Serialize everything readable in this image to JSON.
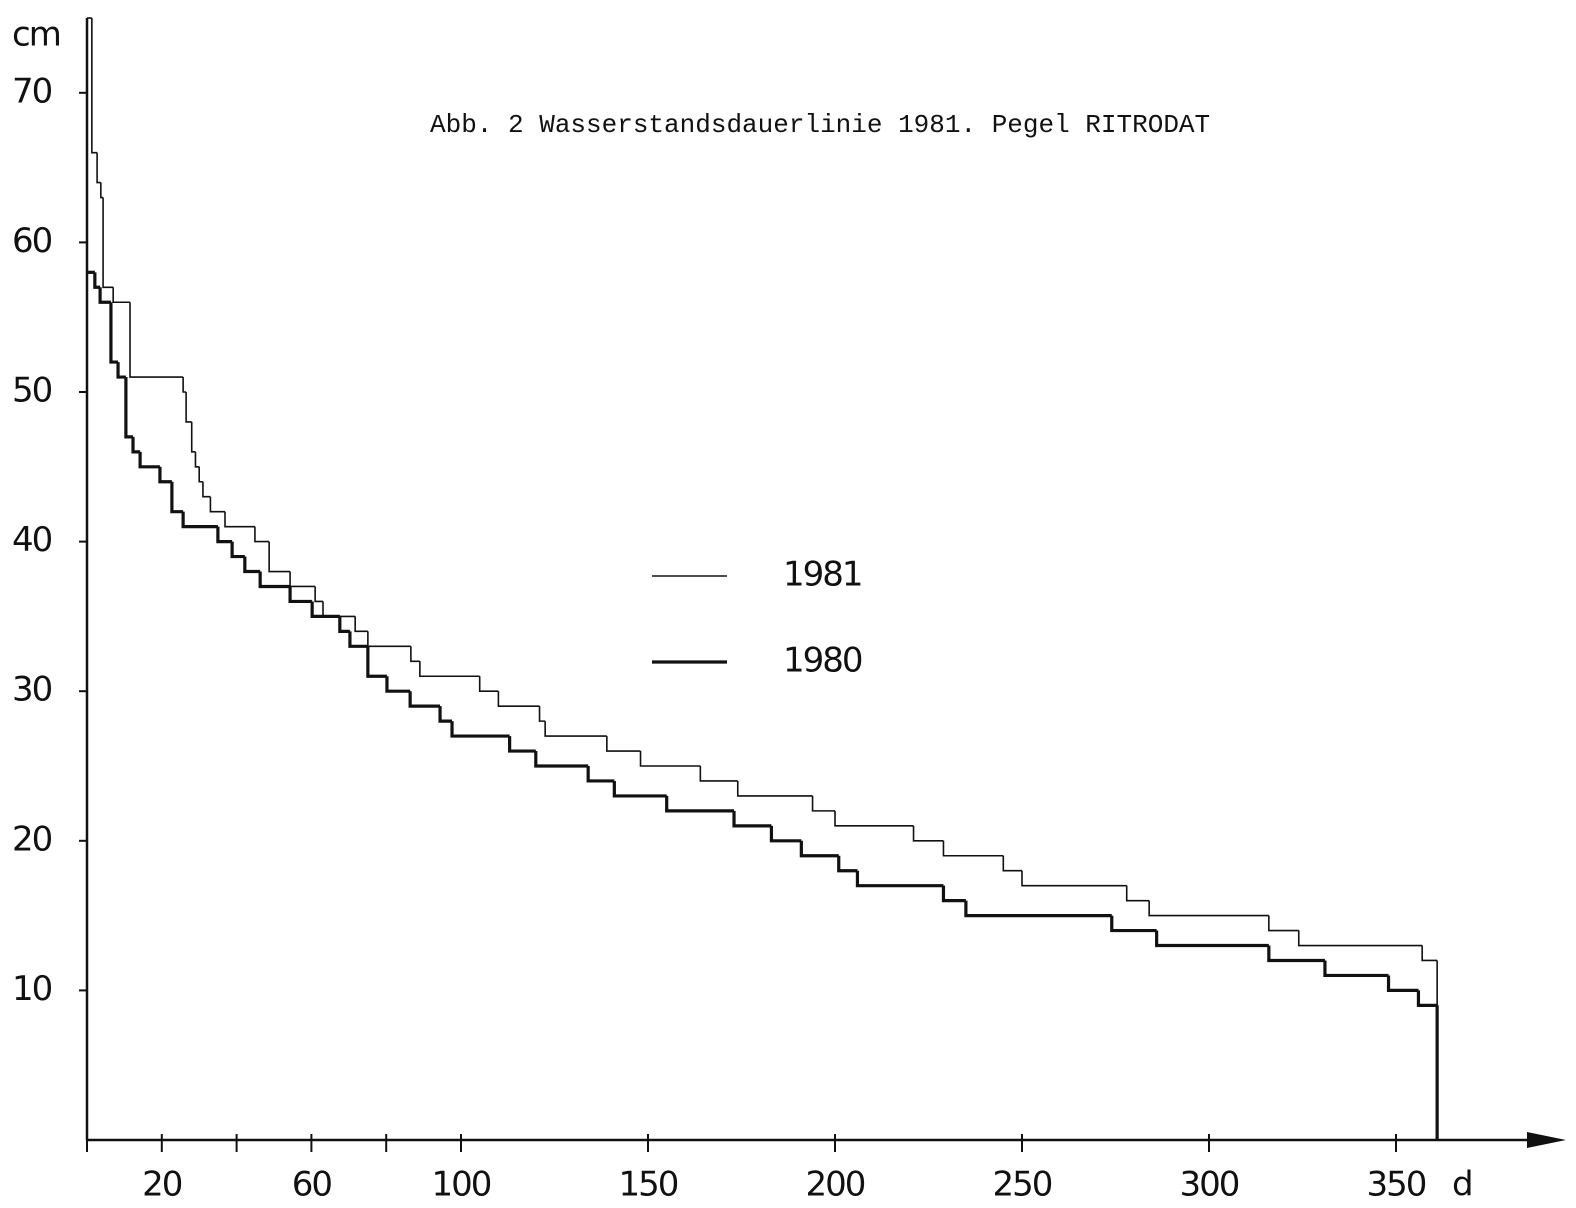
{
  "chart_data": {
    "type": "line",
    "step": "post",
    "title": "Abb. 2  Wasserstandsdauerlinie 1981. Pegel RITRODAT",
    "y_label": "cm",
    "x_label": "d",
    "xlim": [
      0,
      390
    ],
    "ylim": [
      0,
      75
    ],
    "xticks": [
      20,
      60,
      100,
      150,
      200,
      250,
      300,
      350
    ],
    "xminorticks": [
      0,
      40,
      80
    ],
    "yticks": [
      10,
      20,
      30,
      40,
      50,
      60,
      70
    ],
    "series": [
      {
        "name": "1981",
        "color": "#111111",
        "linewidth": 1.6,
        "x": [
          0,
          1.3,
          2.7,
          3.7,
          4.3,
          7,
          11.5,
          25.7,
          26.5,
          28,
          29,
          30,
          31,
          33,
          36.9,
          44.9,
          48.7,
          54.3,
          61,
          63.1,
          71.7,
          75.1,
          86.6,
          89,
          105,
          110,
          121,
          122.5,
          139,
          148,
          164,
          174,
          194,
          200,
          221,
          229,
          245,
          250,
          278,
          284,
          316,
          324,
          357,
          361
        ],
        "values": [
          75,
          66,
          64,
          63,
          57,
          56,
          51,
          50,
          48,
          46,
          45,
          44,
          43,
          42,
          41,
          40,
          38,
          37,
          36,
          35,
          34,
          33,
          32,
          31,
          30,
          29,
          28,
          27,
          26,
          25,
          24,
          23,
          22,
          21,
          20,
          19,
          18,
          17,
          16,
          15,
          14,
          13,
          12,
          0
        ]
      },
      {
        "name": "1980",
        "color": "#111111",
        "linewidth": 3.2,
        "x": [
          0,
          2.1,
          3.5,
          6.4,
          8.3,
          10.4,
          12.3,
          14.2,
          19.5,
          22.7,
          25.7,
          35,
          38.8,
          42.2,
          46.3,
          54.3,
          60.2,
          67.6,
          70.3,
          75.1,
          80.2,
          86.4,
          94.4,
          97.6,
          113,
          120,
          134,
          141,
          155,
          173,
          183,
          191,
          201,
          206,
          229,
          235,
          274,
          286,
          316,
          331,
          348,
          356,
          361
        ],
        "values": [
          58,
          57,
          56,
          52,
          51,
          47,
          46,
          45,
          44,
          42,
          41,
          40,
          39,
          38,
          37,
          36,
          35,
          34,
          33,
          31,
          30,
          29,
          28,
          27,
          26,
          25,
          24,
          23,
          22,
          21,
          20,
          19,
          18,
          17,
          16,
          15,
          14,
          13,
          12,
          11,
          10,
          9,
          0
        ]
      }
    ]
  }
}
